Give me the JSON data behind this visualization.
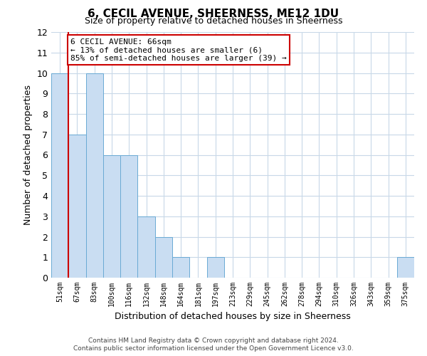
{
  "title": "6, CECIL AVENUE, SHEERNESS, ME12 1DU",
  "subtitle": "Size of property relative to detached houses in Sheerness",
  "xlabel": "Distribution of detached houses by size in Sheerness",
  "ylabel": "Number of detached properties",
  "footnote1": "Contains HM Land Registry data © Crown copyright and database right 2024.",
  "footnote2": "Contains public sector information licensed under the Open Government Licence v3.0.",
  "bin_labels": [
    "51sqm",
    "67sqm",
    "83sqm",
    "100sqm",
    "116sqm",
    "132sqm",
    "148sqm",
    "164sqm",
    "181sqm",
    "197sqm",
    "213sqm",
    "229sqm",
    "245sqm",
    "262sqm",
    "278sqm",
    "294sqm",
    "310sqm",
    "326sqm",
    "343sqm",
    "359sqm",
    "375sqm"
  ],
  "bar_values": [
    10,
    7,
    10,
    6,
    6,
    3,
    2,
    1,
    0,
    1,
    0,
    0,
    0,
    0,
    0,
    0,
    0,
    0,
    0,
    0,
    1
  ],
  "bar_color": "#c9ddf2",
  "bar_edge_color": "#6aaad4",
  "marker_line_color": "#cc0000",
  "annotation_title": "6 CECIL AVENUE: 66sqm",
  "annotation_line1": "← 13% of detached houses are smaller (6)",
  "annotation_line2": "85% of semi-detached houses are larger (39) →",
  "annotation_box_edge": "#cc0000",
  "grid_color": "#c8d8e8",
  "ylim": [
    0,
    12
  ],
  "yticks": [
    0,
    1,
    2,
    3,
    4,
    5,
    6,
    7,
    8,
    9,
    10,
    11,
    12
  ]
}
